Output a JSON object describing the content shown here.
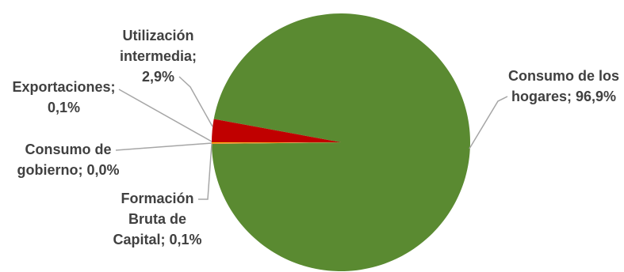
{
  "chart_data": {
    "type": "pie",
    "title": "",
    "slices": [
      {
        "label": "Consumo de los hogares; 96,9%",
        "value": 96.9,
        "color": "#5a8a31"
      },
      {
        "label": "Utilización intermedia; 2,9%",
        "value": 2.9,
        "color": "#c00000"
      },
      {
        "label": "Exportaciones; 0,1%",
        "value": 0.1,
        "color": "#ffc000"
      },
      {
        "label": "Consumo de gobierno; 0,0%",
        "value": 0.0,
        "color": "#a5a5a5"
      },
      {
        "label": "Formación Bruta de Capital; 0,1%",
        "value": 0.1,
        "color": "#ed7d31"
      }
    ],
    "legend": "none",
    "data_labels": "outside-with-leader-lines"
  }
}
